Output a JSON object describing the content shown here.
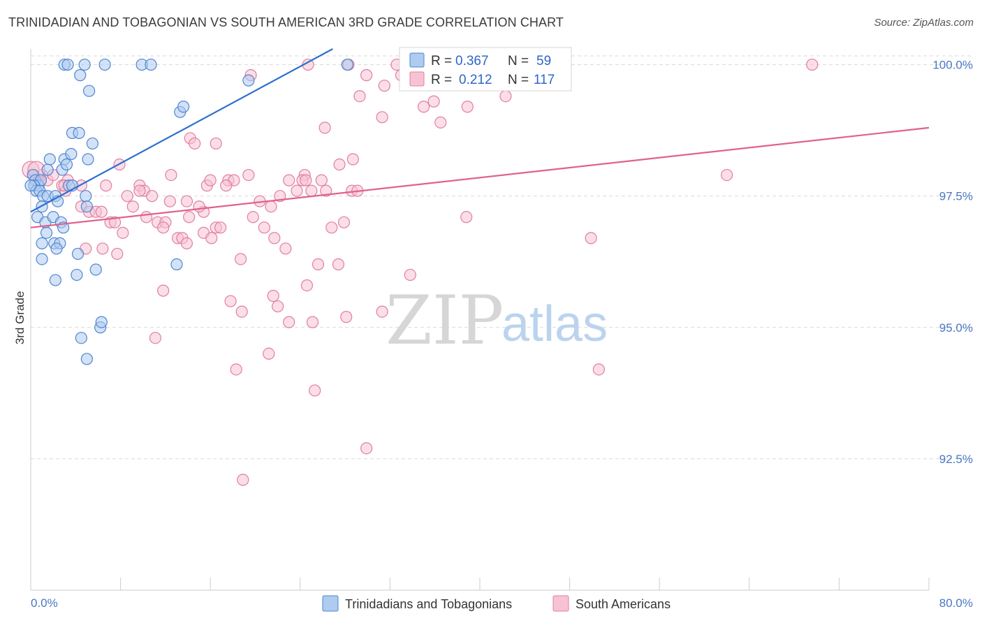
{
  "title": "TRINIDADIAN AND TOBAGONIAN VS SOUTH AMERICAN 3RD GRADE CORRELATION CHART",
  "source": "Source: ZipAtlas.com",
  "watermark": {
    "zip": "ZIP",
    "atlas": "atlas"
  },
  "colors": {
    "blue_fill": "#aecbf0",
    "blue_stroke": "#4f86d0",
    "blue_line": "#2e6fce",
    "pink_fill": "#f7c3d3",
    "pink_stroke": "#e07fa0",
    "pink_line": "#e0618e",
    "grid": "#d9d9d9",
    "tick_label": "#4a78c2"
  },
  "legend": {
    "r_label": "R =",
    "n_label": "N =",
    "rows": [
      {
        "r": "0.367",
        "n": "59"
      },
      {
        "r": "0.212",
        "n": "117"
      }
    ]
  },
  "chart_data": {
    "type": "scatter",
    "title": "TRINIDADIAN AND TOBAGONIAN VS SOUTH AMERICAN 3RD GRADE CORRELATION CHART",
    "xlabel": "",
    "ylabel": "3rd Grade",
    "xlim": [
      0,
      80
    ],
    "ylim": [
      90.0,
      100.3
    ],
    "x_tick_labels": [
      "0.0%",
      "80.0%"
    ],
    "y_ticks": [
      {
        "value": 92.5,
        "label": "92.5%"
      },
      {
        "value": 95.0,
        "label": "95.0%"
      },
      {
        "value": 97.5,
        "label": "97.5%"
      },
      {
        "value": 100.0,
        "label": "100.0%"
      }
    ],
    "series": [
      {
        "name": "Trinidadians and Tobagonians",
        "color": "blue",
        "trend": {
          "x": [
            0.0,
            26.9
          ],
          "y": [
            97.2,
            100.3
          ]
        },
        "points": [
          [
            3.0,
            100.0
          ],
          [
            3.3,
            100.0
          ],
          [
            4.8,
            100.0
          ],
          [
            6.6,
            100.0
          ],
          [
            9.9,
            100.0
          ],
          [
            10.7,
            100.0
          ],
          [
            28.2,
            100.0
          ],
          [
            4.4,
            99.8
          ],
          [
            5.2,
            99.5
          ],
          [
            19.4,
            99.7
          ],
          [
            13.3,
            99.1
          ],
          [
            13.6,
            99.2
          ],
          [
            3.7,
            98.7
          ],
          [
            4.3,
            98.7
          ],
          [
            5.5,
            98.5
          ],
          [
            1.7,
            98.2
          ],
          [
            3.0,
            98.2
          ],
          [
            3.6,
            98.3
          ],
          [
            5.1,
            98.2
          ],
          [
            1.5,
            98.0
          ],
          [
            2.8,
            98.0
          ],
          [
            3.2,
            98.1
          ],
          [
            0.2,
            97.9
          ],
          [
            0.4,
            97.8
          ],
          [
            0.7,
            97.7
          ],
          [
            0.9,
            97.8
          ],
          [
            0.3,
            97.7
          ],
          [
            0.5,
            97.6
          ],
          [
            0.8,
            97.6
          ],
          [
            1.1,
            97.5
          ],
          [
            1.5,
            97.5
          ],
          [
            2.2,
            97.5
          ],
          [
            2.4,
            97.4
          ],
          [
            3.4,
            97.7
          ],
          [
            3.7,
            97.7
          ],
          [
            4.9,
            97.5
          ],
          [
            1.0,
            97.3
          ],
          [
            5.0,
            97.3
          ],
          [
            0.6,
            97.1
          ],
          [
            1.3,
            97.0
          ],
          [
            2.0,
            97.1
          ],
          [
            2.7,
            97.0
          ],
          [
            1.4,
            96.8
          ],
          [
            2.9,
            96.9
          ],
          [
            1.0,
            96.6
          ],
          [
            2.1,
            96.6
          ],
          [
            2.6,
            96.6
          ],
          [
            2.3,
            96.5
          ],
          [
            1.0,
            96.3
          ],
          [
            4.2,
            96.4
          ],
          [
            13.0,
            96.2
          ],
          [
            5.8,
            96.1
          ],
          [
            4.1,
            96.0
          ],
          [
            2.2,
            95.9
          ],
          [
            6.2,
            95.0
          ],
          [
            6.3,
            95.1
          ],
          [
            4.5,
            94.8
          ],
          [
            5.0,
            94.4
          ],
          [
            0.0,
            97.7
          ]
        ]
      },
      {
        "name": "South Americans",
        "color": "pink",
        "trend": {
          "x": [
            0.0,
            80.0
          ],
          "y": [
            96.9,
            98.8
          ]
        },
        "points": [
          [
            24.7,
            100.0
          ],
          [
            28.3,
            100.0
          ],
          [
            32.6,
            100.0
          ],
          [
            69.6,
            100.0
          ],
          [
            29.9,
            99.8
          ],
          [
            19.6,
            99.8
          ],
          [
            33.0,
            99.8
          ],
          [
            31.5,
            99.6
          ],
          [
            29.3,
            99.4
          ],
          [
            35.9,
            99.3
          ],
          [
            42.3,
            99.4
          ],
          [
            35.0,
            99.2
          ],
          [
            38.9,
            99.2
          ],
          [
            31.3,
            99.0
          ],
          [
            36.5,
            98.9
          ],
          [
            26.2,
            98.8
          ],
          [
            14.2,
            98.6
          ],
          [
            14.6,
            98.5
          ],
          [
            16.5,
            98.5
          ],
          [
            28.7,
            98.2
          ],
          [
            27.5,
            98.1
          ],
          [
            7.9,
            98.1
          ],
          [
            62.0,
            97.9
          ],
          [
            0.3,
            97.9
          ],
          [
            0.7,
            97.8
          ],
          [
            1.0,
            97.9
          ],
          [
            1.5,
            97.8
          ],
          [
            3.3,
            97.8
          ],
          [
            12.5,
            97.9
          ],
          [
            19.4,
            97.9
          ],
          [
            24.4,
            97.9
          ],
          [
            17.6,
            97.8
          ],
          [
            15.7,
            97.7
          ],
          [
            16.0,
            97.8
          ],
          [
            23.0,
            97.8
          ],
          [
            24.2,
            97.8
          ],
          [
            25.9,
            97.8
          ],
          [
            2.8,
            97.7
          ],
          [
            3.1,
            97.6
          ],
          [
            4.5,
            97.7
          ],
          [
            6.7,
            97.7
          ],
          [
            9.7,
            97.7
          ],
          [
            10.1,
            97.6
          ],
          [
            26.3,
            97.6
          ],
          [
            28.6,
            97.6
          ],
          [
            29.1,
            97.6
          ],
          [
            8.6,
            97.5
          ],
          [
            10.8,
            97.5
          ],
          [
            23.7,
            97.6
          ],
          [
            12.4,
            97.4
          ],
          [
            13.9,
            97.4
          ],
          [
            20.4,
            97.4
          ],
          [
            21.4,
            97.3
          ],
          [
            9.1,
            97.3
          ],
          [
            4.5,
            97.3
          ],
          [
            5.2,
            97.2
          ],
          [
            5.8,
            97.2
          ],
          [
            6.3,
            97.2
          ],
          [
            10.3,
            97.1
          ],
          [
            15.4,
            97.2
          ],
          [
            15.0,
            97.3
          ],
          [
            19.8,
            97.1
          ],
          [
            27.9,
            97.0
          ],
          [
            38.8,
            97.1
          ],
          [
            7.1,
            97.0
          ],
          [
            7.5,
            97.0
          ],
          [
            11.3,
            97.0
          ],
          [
            12.0,
            97.0
          ],
          [
            20.8,
            96.9
          ],
          [
            26.8,
            96.9
          ],
          [
            8.2,
            96.8
          ],
          [
            11.8,
            96.9
          ],
          [
            15.4,
            96.8
          ],
          [
            16.5,
            96.9
          ],
          [
            16.9,
            96.9
          ],
          [
            13.1,
            96.7
          ],
          [
            13.5,
            96.7
          ],
          [
            13.9,
            96.6
          ],
          [
            16.1,
            96.7
          ],
          [
            21.7,
            96.7
          ],
          [
            49.9,
            96.7
          ],
          [
            4.9,
            96.5
          ],
          [
            6.4,
            96.5
          ],
          [
            7.7,
            96.4
          ],
          [
            22.7,
            96.5
          ],
          [
            18.7,
            96.3
          ],
          [
            25.6,
            96.2
          ],
          [
            27.4,
            96.2
          ],
          [
            24.6,
            95.8
          ],
          [
            11.8,
            95.7
          ],
          [
            21.6,
            95.6
          ],
          [
            17.8,
            95.5
          ],
          [
            22.0,
            95.4
          ],
          [
            18.8,
            95.3
          ],
          [
            31.3,
            95.3
          ],
          [
            23.0,
            95.1
          ],
          [
            25.1,
            95.1
          ],
          [
            28.1,
            95.2
          ],
          [
            11.1,
            94.8
          ],
          [
            21.2,
            94.5
          ],
          [
            18.3,
            94.2
          ],
          [
            50.6,
            94.2
          ],
          [
            25.3,
            93.8
          ],
          [
            29.9,
            92.7
          ],
          [
            18.9,
            92.1
          ],
          [
            0.0,
            98.0
          ],
          [
            0.5,
            98.0
          ],
          [
            2.0,
            97.9
          ],
          [
            3.0,
            97.7
          ],
          [
            18.1,
            97.8
          ],
          [
            22.2,
            97.5
          ],
          [
            25.0,
            97.6
          ],
          [
            17.4,
            97.7
          ],
          [
            9.7,
            97.6
          ],
          [
            14.1,
            97.1
          ],
          [
            24.5,
            97.8
          ],
          [
            33.8,
            96.0
          ]
        ]
      }
    ]
  },
  "bottom_legend": [
    "Trinidadians and Tobagonians",
    "South Americans"
  ]
}
